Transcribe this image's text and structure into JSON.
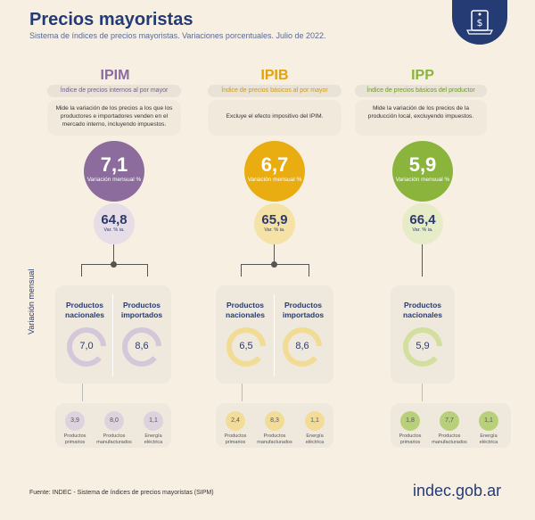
{
  "header": {
    "title": "Precios mayoristas",
    "subtitle": "Sistema de índices de precios mayoristas. Variaciones porcentuales. Julio de 2022."
  },
  "side_label": "Variación mensual",
  "footer": {
    "source": "Fuente: INDEC - Sistema de índices de precios mayoristas (SIPM)",
    "brand": "indec.gob.ar"
  },
  "colors": {
    "ipim": "#8b6c9c",
    "ipib": "#e9ad12",
    "ipp": "#8ab43c",
    "navy": "#243b74"
  },
  "indices": [
    {
      "name": "IPIM",
      "full_name": "Índice de precios internos al por mayor",
      "description": "Mide la variación de los precios a los que los productores e importadores venden en el mercado interno, incluyendo impuestos.",
      "monthly": "7,1",
      "monthly_label": "Variación mensual %",
      "yearly": "64,8",
      "yearly_label": "Var. % ia.",
      "groups": [
        {
          "label": "Productos nacionales",
          "value": "7,0"
        },
        {
          "label": "Productos importados",
          "value": "8,6"
        }
      ],
      "breakdown": [
        {
          "value": "3,9",
          "label": "Productos primarios"
        },
        {
          "value": "8,0",
          "label": "Productos manufacturados"
        },
        {
          "value": "1,1",
          "label": "Energía eléctrica"
        }
      ]
    },
    {
      "name": "IPIB",
      "full_name": "Índice de precios básicos al por mayor",
      "description": "Excluye el efecto impositivo del IPIM.",
      "monthly": "6,7",
      "monthly_label": "Variación mensual %",
      "yearly": "65,9",
      "yearly_label": "Var. % ia.",
      "groups": [
        {
          "label": "Productos nacionales",
          "value": "6,5"
        },
        {
          "label": "Productos importados",
          "value": "8,6"
        }
      ],
      "breakdown": [
        {
          "value": "2,4",
          "label": "Productos primarios"
        },
        {
          "value": "8,3",
          "label": "Productos manufacturados"
        },
        {
          "value": "1,1",
          "label": "Energía eléctrica"
        }
      ]
    },
    {
      "name": "IPP",
      "full_name": "Índice de precios básicos del productor",
      "description": "Mide la variación de los precios de la producción local, excluyendo impuestos.",
      "monthly": "5,9",
      "monthly_label": "Variación mensual %",
      "yearly": "66,4",
      "yearly_label": "Var. % ia.",
      "groups": [
        {
          "label": "Productos nacionales",
          "value": "5,9"
        }
      ],
      "breakdown": [
        {
          "value": "1,8",
          "label": "Productos primarios"
        },
        {
          "value": "7,7",
          "label": "Productos manufacturados"
        },
        {
          "value": "1,1",
          "label": "Energía eléctrica"
        }
      ]
    }
  ]
}
